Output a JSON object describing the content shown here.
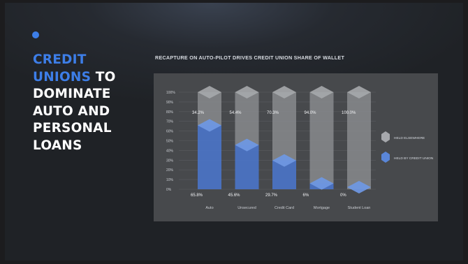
{
  "slide": {
    "headline_line1_accent": "CREDIT",
    "headline_line2_accent": "UNIONS",
    "headline_line2_rest": " TO",
    "headline_line3": "DOMINATE",
    "headline_line4": "AUTO AND",
    "headline_line5": "PERSONAL",
    "headline_line6": "LOANS"
  },
  "colors": {
    "accent_blue": "#3d7ee8",
    "bar_blue": "#4a74c9",
    "bar_grey": "#8a8c90",
    "panel": "#47494c"
  },
  "chart_data": {
    "type": "bar",
    "stacked": true,
    "title": "RECAPTURE ON AUTO-PILOT DRIVES CREDIT UNION SHARE OF WALLET",
    "categories": [
      "Auto",
      "Unsecured",
      "Credit Card",
      "Mortgage",
      "Student Loan"
    ],
    "series": [
      {
        "name": "HELD BY CREDIT UNION",
        "values": [
          65.8,
          45.6,
          29.7,
          6,
          0
        ]
      },
      {
        "name": "HELD ELSEWHERE",
        "values": [
          34.2,
          54.4,
          70.3,
          94,
          100
        ]
      }
    ],
    "bottom_labels": [
      "65.8%",
      "45.6%",
      "29.7%",
      "6%",
      "0%"
    ],
    "top_labels": [
      "34.2%",
      "54.4%",
      "70.3%",
      "94.0%",
      "100.0%"
    ],
    "y_ticks": [
      "0%",
      "10%",
      "20%",
      "30%",
      "40%",
      "50%",
      "60%",
      "70%",
      "80%",
      "90%",
      "100%"
    ],
    "ylim": [
      0,
      100
    ],
    "grid": true,
    "legend_position": "right"
  }
}
